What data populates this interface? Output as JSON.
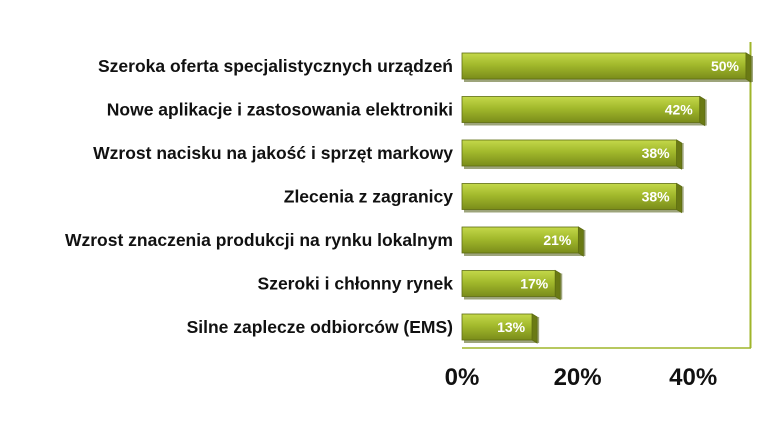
{
  "chart_data": {
    "type": "bar",
    "orientation": "horizontal",
    "categories": [
      "Szeroka oferta specjalistycznych urządzeń",
      "Nowe aplikacje i zastosowania elektroniki",
      "Wzrost nacisku na jakość i sprzęt markowy",
      "Zlecenia z zagranicy",
      "Wzrost znaczenia produkcji na rynku lokalnym",
      "Szeroki i chłonny rynek",
      "Silne zaplecze odbiorców (EMS)"
    ],
    "values": [
      50,
      42,
      38,
      38,
      21,
      17,
      13
    ],
    "value_labels": [
      "50%",
      "42%",
      "38%",
      "38%",
      "21%",
      "17%",
      "13%"
    ],
    "x_ticks": [
      "0%",
      "20%",
      "40%"
    ],
    "xlim": [
      0,
      50
    ],
    "grid": false,
    "legend": "none",
    "colors": {
      "bar_top": "#c4d84a",
      "bar_mid": "#a2b92c",
      "bar_bottom": "#7a8c1a",
      "bar_end": "#6a7a14",
      "bar_outline": "#5f6e12",
      "plot_border": "#9fb52a",
      "value_text": "#ffffff",
      "label_text": "#111111"
    }
  }
}
